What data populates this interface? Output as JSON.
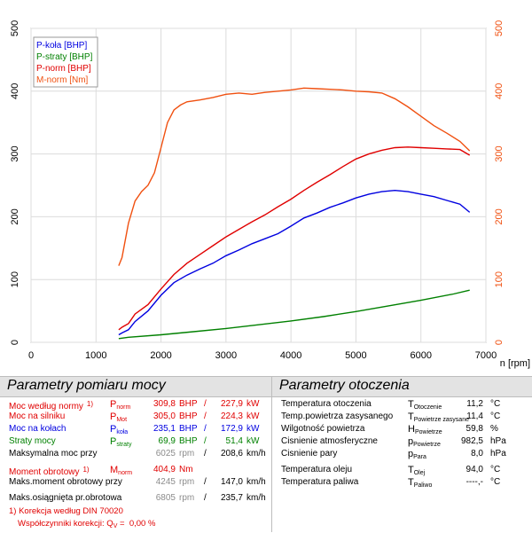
{
  "chart_data": {
    "type": "line",
    "xlabel": "n [rpm]",
    "xlim": [
      0,
      7000
    ],
    "ylim": [
      0,
      500
    ],
    "x_ticks": [
      0,
      1000,
      2000,
      3000,
      4000,
      5000,
      6000,
      7000
    ],
    "y_ticks": [
      0,
      100,
      200,
      300,
      400,
      500
    ],
    "grid": true,
    "legend_position": "top-left",
    "series": [
      {
        "name": "P-koła [BHP]",
        "color": "#0000e0",
        "x": [
          1350,
          1400,
          1500,
          1600,
          1800,
          2000,
          2200,
          2400,
          2600,
          2800,
          3000,
          3200,
          3400,
          3600,
          3800,
          4000,
          4200,
          4400,
          4600,
          4800,
          5000,
          5200,
          5400,
          5600,
          5800,
          6000,
          6200,
          6400,
          6600,
          6750
        ],
        "y": [
          12,
          15,
          20,
          33,
          50,
          75,
          95,
          107,
          117,
          126,
          138,
          147,
          157,
          165,
          173,
          185,
          198,
          206,
          215,
          222,
          230,
          236,
          240,
          242,
          240,
          236,
          232,
          226,
          220,
          207
        ]
      },
      {
        "name": "P-straty [BHP]",
        "color": "#008000",
        "x": [
          1350,
          1500,
          2000,
          2500,
          3000,
          3500,
          4000,
          4500,
          5000,
          5500,
          6000,
          6500,
          6750
        ],
        "y": [
          6,
          8,
          12,
          17,
          22,
          28,
          34,
          41,
          49,
          58,
          67,
          77,
          83
        ]
      },
      {
        "name": "P-norm [BHP]",
        "color": "#e00000",
        "x": [
          1350,
          1400,
          1500,
          1600,
          1800,
          2000,
          2200,
          2400,
          2600,
          2800,
          3000,
          3200,
          3400,
          3600,
          3800,
          4000,
          4200,
          4400,
          4600,
          4800,
          5000,
          5200,
          5400,
          5600,
          5800,
          6000,
          6200,
          6400,
          6600,
          6750
        ],
        "y": [
          20,
          24,
          30,
          45,
          60,
          85,
          108,
          126,
          140,
          154,
          168,
          180,
          192,
          203,
          216,
          228,
          242,
          255,
          267,
          280,
          292,
          300,
          306,
          310,
          311,
          310,
          309,
          308,
          307,
          298
        ]
      },
      {
        "name": "M-norm [Nm]",
        "color": "#f05010",
        "x": [
          1350,
          1400,
          1500,
          1600,
          1700,
          1800,
          1900,
          2000,
          2100,
          2200,
          2300,
          2400,
          2600,
          2800,
          3000,
          3200,
          3400,
          3600,
          3800,
          4000,
          4200,
          4400,
          4600,
          4800,
          5000,
          5200,
          5400,
          5600,
          5800,
          6000,
          6200,
          6400,
          6600,
          6750
        ],
        "y": [
          122,
          135,
          190,
          225,
          240,
          250,
          270,
          310,
          350,
          370,
          378,
          383,
          386,
          390,
          395,
          397,
          395,
          398,
          400,
          402,
          405,
          404,
          403,
          402,
          400,
          399,
          397,
          388,
          375,
          360,
          345,
          333,
          320,
          305
        ]
      }
    ]
  },
  "left_panel": {
    "title": "Parametry pomiaru mocy",
    "rows": [
      {
        "label": "Moc według normy",
        "sup": "1)",
        "sym": "P",
        "sub": "norm",
        "v1": "309,8",
        "u1": "BHP",
        "sep": "/",
        "v2": "227,9",
        "u2": "kW",
        "color": "#e00000",
        "vcolor": "#e00000"
      },
      {
        "label": "Moc na silniku",
        "sup": "",
        "sym": "P",
        "sub": "Mot",
        "v1": "305,0",
        "u1": "BHP",
        "sep": "/",
        "v2": "224,3",
        "u2": "kW",
        "color": "#e00000",
        "vcolor": "#e00000"
      },
      {
        "label": "Moc na kołach",
        "sup": "",
        "sym": "P",
        "sub": "koła",
        "v1": "235,1",
        "u1": "BHP",
        "sep": "/",
        "v2": "172,9",
        "u2": "kW",
        "color": "#0000e0",
        "vcolor": "#0000e0"
      },
      {
        "label": "Straty mocy",
        "sup": "",
        "sym": "P",
        "sub": "straty",
        "v1": "69,9",
        "u1": "BHP",
        "sep": "/",
        "v2": "51,4",
        "u2": "kW",
        "color": "#008000",
        "vcolor": "#008000"
      },
      {
        "label": "Maksymalna moc przy",
        "sup": "",
        "sym": "",
        "sub": "",
        "v1": "6025",
        "u1": "rpm",
        "sep": "/",
        "v2": "208,6",
        "u2": "km/h",
        "color": "#000000",
        "vcolor": "#8c8c8c"
      },
      {
        "label": "Moment obrotowy",
        "sup": "1)",
        "sym": "M",
        "sub": "norm",
        "v1": "404,9",
        "u1": "Nm",
        "sep": "",
        "v2": "",
        "u2": "",
        "color": "#e00000",
        "vcolor": "#e00000"
      },
      {
        "label": "Maks.moment obrotowy przy",
        "sup": "",
        "sym": "",
        "sub": "",
        "v1": "4245",
        "u1": "rpm",
        "sep": "/",
        "v2": "147,0",
        "u2": "km/h",
        "color": "#000000",
        "vcolor": "#8c8c8c"
      },
      {
        "label": "Maks.osiągnięta pr.obrotowa",
        "sup": "",
        "sym": "",
        "sub": "",
        "v1": "6805",
        "u1": "rpm",
        "sep": "/",
        "v2": "235,7",
        "u2": "km/h",
        "color": "#000000",
        "vcolor": "#8c8c8c"
      }
    ],
    "footnote1": "1) Korekcja według DIN 70020",
    "footnote2_prefix": "Współczynniki korekcji: Q",
    "footnote2_sub": "V",
    "footnote2_suffix": " =",
    "footnote2_value": "0,00 %"
  },
  "right_panel": {
    "title": "Parametry otoczenia",
    "rows": [
      {
        "label": "Temperatura otoczenia",
        "sym": "T",
        "sub": "Otoczenie",
        "value": "11,2",
        "unit": "°C"
      },
      {
        "label": "Temp.powietrza zasysanego",
        "sym": "T",
        "sub": "Powietrze zasysane",
        "value": "11,4",
        "unit": "°C"
      },
      {
        "label": "Wilgotność powietrza",
        "sym": "H",
        "sub": "Powietrze",
        "value": "59,8",
        "unit": "%"
      },
      {
        "label": "Cisnienie atmosferyczne",
        "sym": "p",
        "sub": "Powietrze",
        "value": "982,5",
        "unit": "hPa"
      },
      {
        "label": "Cisnienie pary",
        "sym": "p",
        "sub": "Para",
        "value": "8,0",
        "unit": "hPa"
      },
      {
        "label": "Temperatura oleju",
        "sym": "T",
        "sub": "Olej",
        "value": "94,0",
        "unit": "°C"
      },
      {
        "label": "Temperatura paliwa",
        "sym": "T",
        "sub": "Paliwo",
        "value": "----,-",
        "unit": "°C"
      }
    ]
  }
}
